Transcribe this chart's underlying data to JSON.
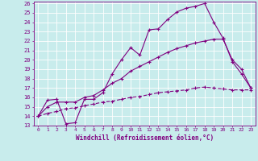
{
  "xlabel": "Windchill (Refroidissement éolien,°C)",
  "bg_color": "#c8ecec",
  "line_color": "#800080",
  "grid_color": "#ffffff",
  "xlim": [
    -0.5,
    23.5
  ],
  "ylim": [
    13,
    26.2
  ],
  "xticks": [
    0,
    1,
    2,
    3,
    4,
    5,
    6,
    7,
    8,
    9,
    10,
    11,
    12,
    13,
    14,
    15,
    16,
    17,
    18,
    19,
    20,
    21,
    22,
    23
  ],
  "yticks": [
    13,
    14,
    15,
    16,
    17,
    18,
    19,
    20,
    21,
    22,
    23,
    24,
    25,
    26
  ],
  "line1_x": [
    0,
    1,
    2,
    3,
    4,
    5,
    6,
    7,
    8,
    9,
    10,
    11,
    12,
    13,
    14,
    15,
    16,
    17,
    18,
    19,
    20,
    21,
    22,
    23
  ],
  "line1_y": [
    14.0,
    15.7,
    15.8,
    13.2,
    13.3,
    15.8,
    15.8,
    16.5,
    18.5,
    20.0,
    21.3,
    20.5,
    23.2,
    23.3,
    24.3,
    25.1,
    25.5,
    25.7,
    26.0,
    24.0,
    22.3,
    19.8,
    18.5,
    17.0
  ],
  "line2_x": [
    0,
    1,
    2,
    3,
    4,
    5,
    6,
    7,
    8,
    9,
    10,
    11,
    12,
    13,
    14,
    15,
    16,
    17,
    18,
    19,
    20,
    21,
    22,
    23
  ],
  "line2_y": [
    14.0,
    15.0,
    15.5,
    15.5,
    15.5,
    16.0,
    16.2,
    16.8,
    17.5,
    18.0,
    18.8,
    19.3,
    19.8,
    20.3,
    20.8,
    21.2,
    21.5,
    21.8,
    22.0,
    22.2,
    22.2,
    20.0,
    19.0,
    17.0
  ],
  "line3_x": [
    0,
    1,
    2,
    3,
    4,
    5,
    6,
    7,
    8,
    9,
    10,
    11,
    12,
    13,
    14,
    15,
    16,
    17,
    18,
    19,
    20,
    21,
    22,
    23
  ],
  "line3_y": [
    14.0,
    14.3,
    14.5,
    14.8,
    14.9,
    15.1,
    15.3,
    15.5,
    15.6,
    15.8,
    16.0,
    16.1,
    16.3,
    16.5,
    16.6,
    16.7,
    16.8,
    17.0,
    17.1,
    17.0,
    16.9,
    16.8,
    16.8,
    16.8
  ]
}
